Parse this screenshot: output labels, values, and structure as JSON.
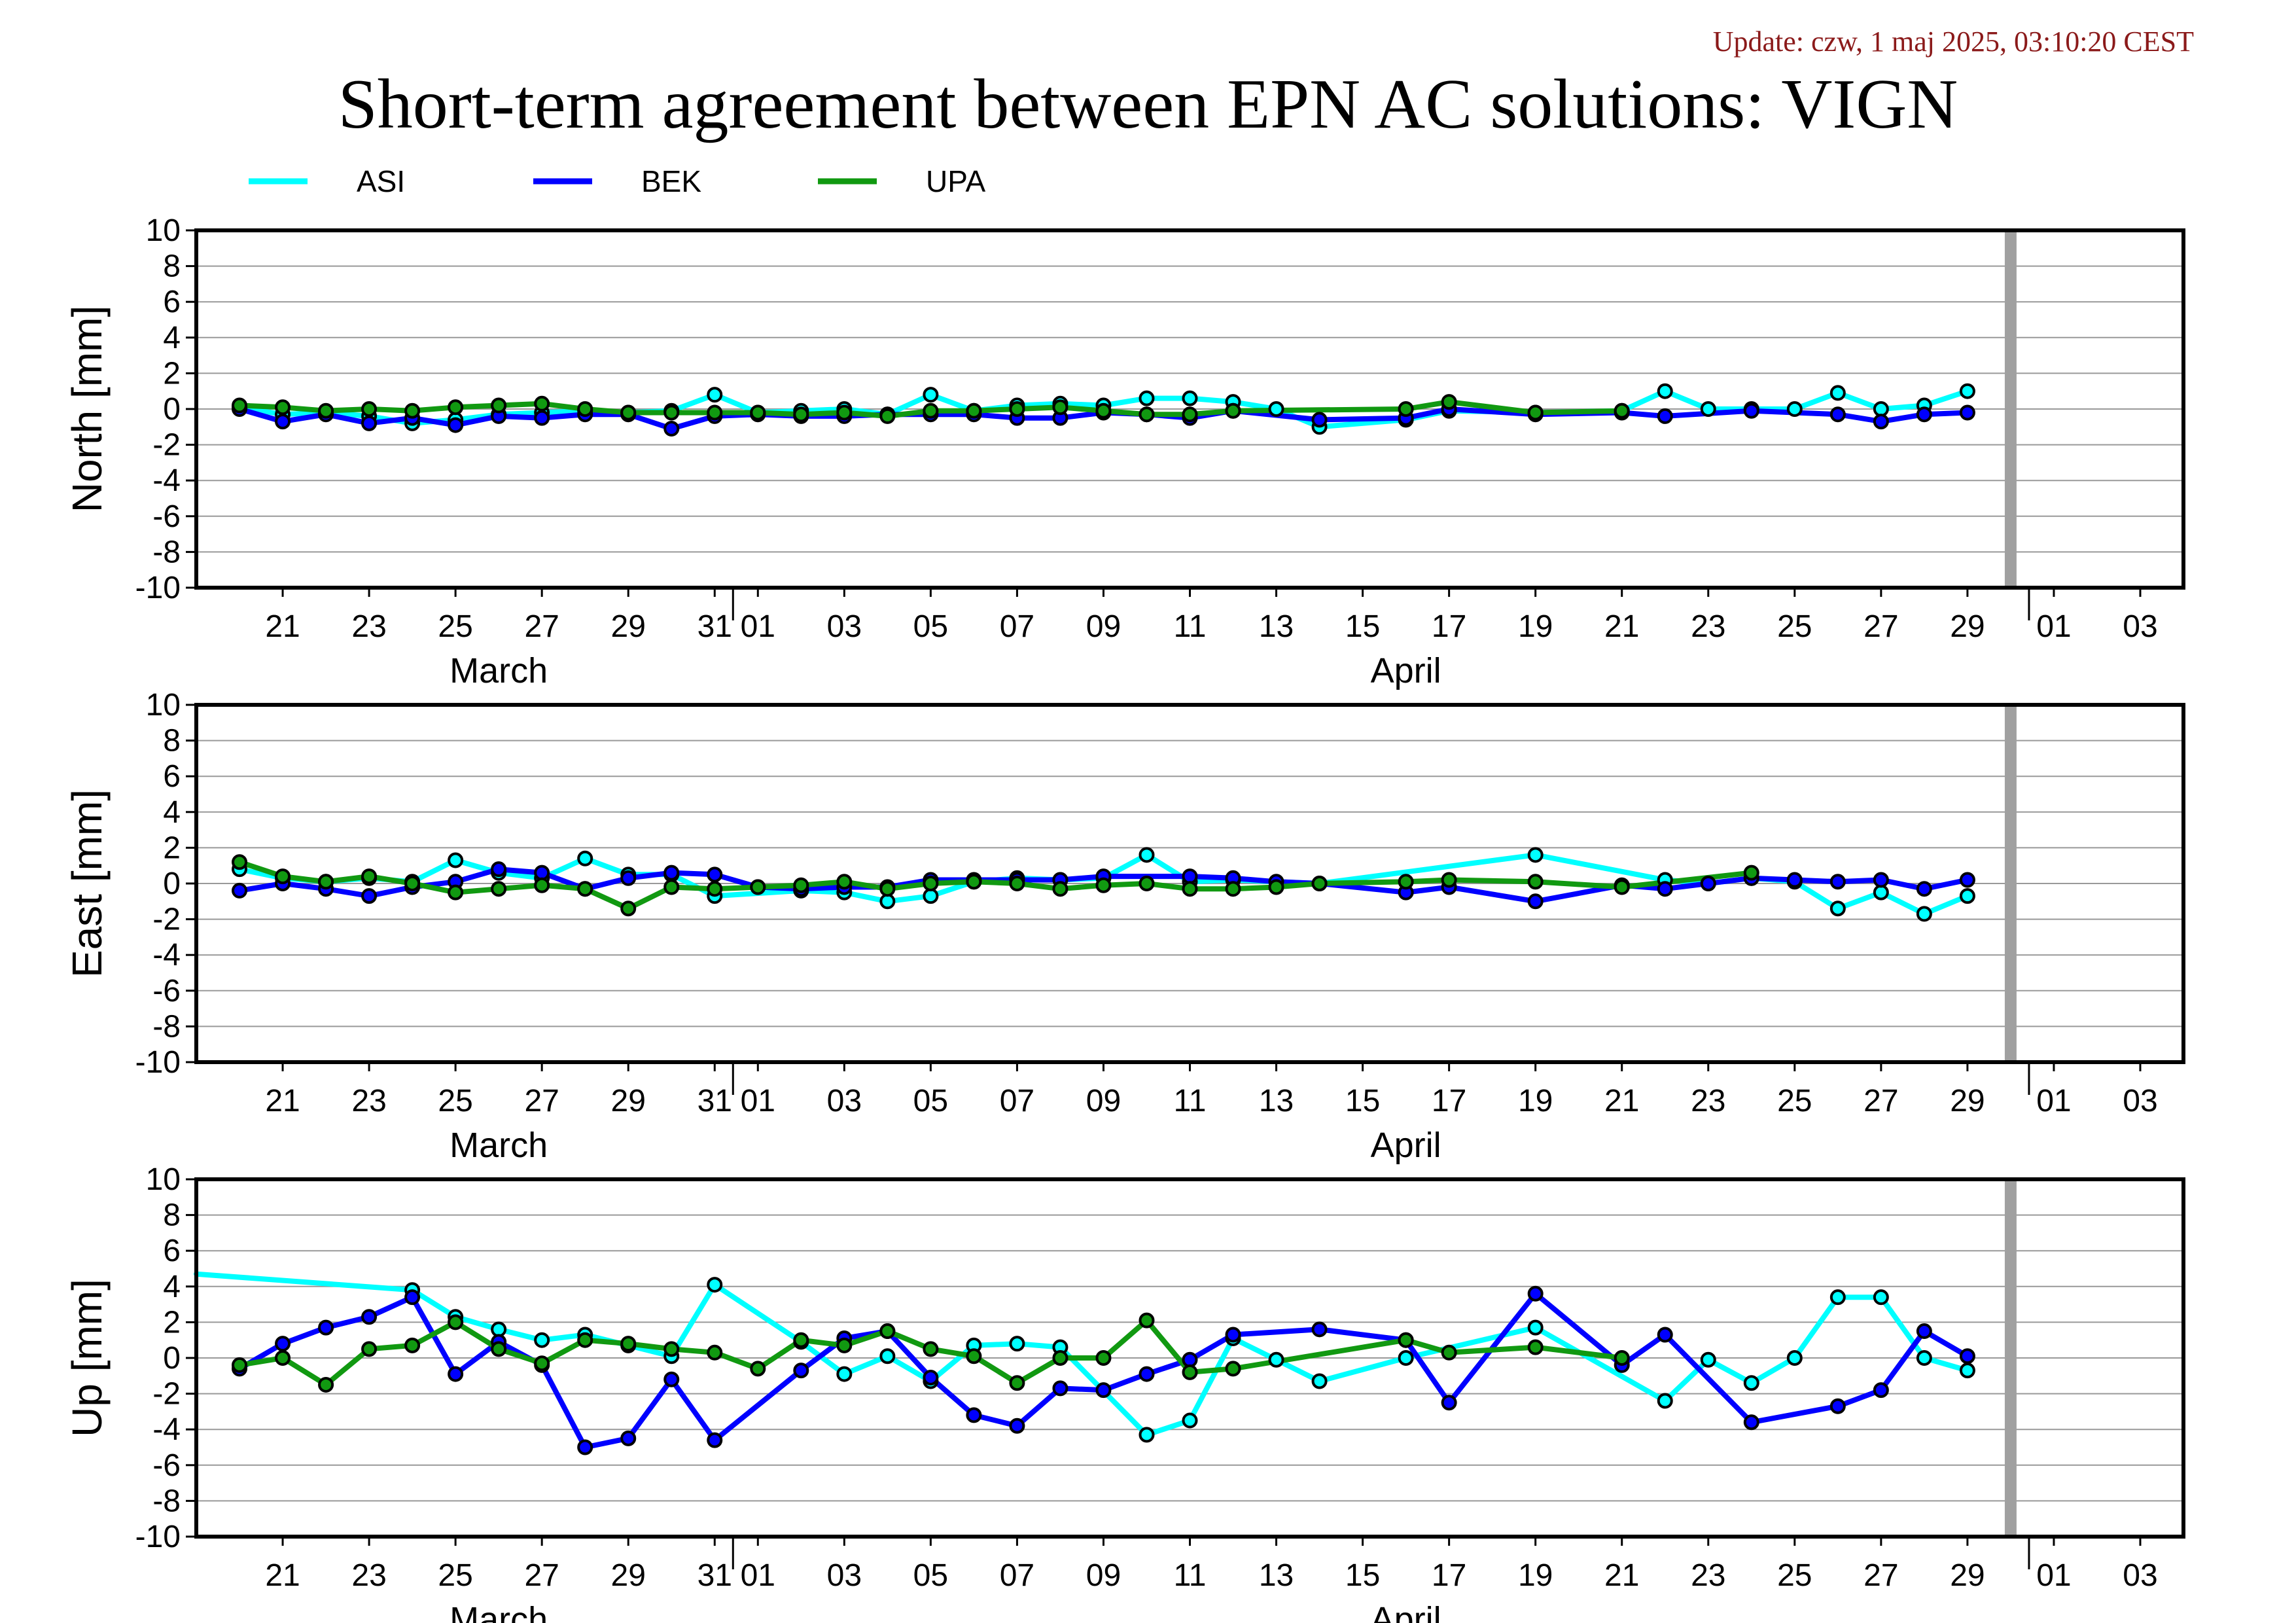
{
  "header": {
    "update": "Update: czw, 1 maj 2025, 03:10:20 CEST",
    "title": "Short-term agreement between EPN AC solutions: VIGN"
  },
  "colors": {
    "ASI": "#00ffff",
    "BEK": "#0000ff",
    "UPA": "#119911",
    "gap_bar": "#a0a0a0",
    "grid": "#999999"
  },
  "chart_data": {
    "type": "line",
    "legend": {
      "placement": "top-left",
      "entries": [
        "ASI",
        "BEK",
        "UPA"
      ]
    },
    "x_range": [
      "2025-03-19",
      "2025-05-04"
    ],
    "x_ticks": [
      "21",
      "23",
      "25",
      "27",
      "29",
      "31",
      "01",
      "03",
      "05",
      "07",
      "09",
      "11",
      "13",
      "15",
      "17",
      "19",
      "21",
      "23",
      "25",
      "27",
      "29",
      "01",
      "03"
    ],
    "x_tick_dates": [
      "2025-03-21",
      "2025-03-23",
      "2025-03-25",
      "2025-03-27",
      "2025-03-29",
      "2025-03-31",
      "2025-04-01",
      "2025-04-03",
      "2025-04-05",
      "2025-04-07",
      "2025-04-09",
      "2025-04-11",
      "2025-04-13",
      "2025-04-15",
      "2025-04-17",
      "2025-04-19",
      "2025-04-21",
      "2025-04-23",
      "2025-04-25",
      "2025-04-27",
      "2025-04-29",
      "2025-05-01",
      "2025-05-03"
    ],
    "month_labels": [
      {
        "date": "2025-03-26",
        "label": "March"
      },
      {
        "date": "2025-04-16",
        "label": "April"
      }
    ],
    "gap_marker_date": "2025-04-30",
    "panels": [
      {
        "name": "north",
        "ylabel": "North [mm]",
        "ylim": [
          -10,
          10
        ],
        "y_ticks": [
          10,
          8,
          6,
          4,
          2,
          0,
          -2,
          -4,
          -6,
          -8,
          -10
        ],
        "grid": true,
        "series": [
          {
            "name": "ASI",
            "dates": [
              "2025-03-20",
              "2025-03-21",
              "2025-03-22",
              "2025-03-23",
              "2025-03-24",
              "2025-03-25",
              "2025-03-26",
              "2025-03-27",
              "2025-03-28",
              "2025-03-29",
              "2025-03-30",
              "2025-03-31",
              "2025-04-01",
              "2025-04-02",
              "2025-04-03",
              "2025-04-04",
              "2025-04-05",
              "2025-04-06",
              "2025-04-07",
              "2025-04-08",
              "2025-04-09",
              "2025-04-10",
              "2025-04-11",
              "2025-04-12",
              "2025-04-13",
              "2025-04-14",
              "2025-04-16",
              "2025-04-17",
              "2025-04-19",
              "2025-04-21",
              "2025-04-22",
              "2025-04-23",
              "2025-04-24",
              "2025-04-25",
              "2025-04-26",
              "2025-04-27",
              "2025-04-28",
              "2025-04-29"
            ],
            "values": [
              0.1,
              -0.3,
              -0.2,
              -0.4,
              -0.8,
              -0.6,
              -0.3,
              -0.2,
              -0.1,
              -0.2,
              -0.1,
              0.8,
              -0.2,
              -0.1,
              0.0,
              -0.3,
              0.8,
              -0.1,
              0.2,
              0.3,
              0.2,
              0.6,
              0.6,
              0.4,
              0.0,
              -1.0,
              -0.6,
              -0.1,
              -0.2,
              -0.1,
              1.0,
              0.0,
              0.0,
              0.0,
              0.9,
              0.0,
              0.2,
              1.0
            ]
          },
          {
            "name": "BEK",
            "dates": [
              "2025-03-20",
              "2025-03-21",
              "2025-03-22",
              "2025-03-23",
              "2025-03-24",
              "2025-03-25",
              "2025-03-26",
              "2025-03-27",
              "2025-03-28",
              "2025-03-29",
              "2025-03-30",
              "2025-03-31",
              "2025-04-01",
              "2025-04-02",
              "2025-04-03",
              "2025-04-04",
              "2025-04-05",
              "2025-04-06",
              "2025-04-07",
              "2025-04-08",
              "2025-04-09",
              "2025-04-10",
              "2025-04-11",
              "2025-04-12",
              "2025-04-14",
              "2025-04-16",
              "2025-04-17",
              "2025-04-19",
              "2025-04-21",
              "2025-04-22",
              "2025-04-24",
              "2025-04-26",
              "2025-04-27",
              "2025-04-28",
              "2025-04-29"
            ],
            "values": [
              0.0,
              -0.7,
              -0.3,
              -0.8,
              -0.5,
              -0.9,
              -0.4,
              -0.5,
              -0.3,
              -0.3,
              -1.1,
              -0.4,
              -0.3,
              -0.4,
              -0.4,
              -0.3,
              -0.3,
              -0.3,
              -0.5,
              -0.5,
              -0.2,
              -0.3,
              -0.5,
              -0.1,
              -0.6,
              -0.5,
              0.0,
              -0.3,
              -0.2,
              -0.4,
              -0.1,
              -0.3,
              -0.7,
              -0.3,
              -0.2
            ]
          },
          {
            "name": "UPA",
            "dates": [
              "2025-03-20",
              "2025-03-21",
              "2025-03-22",
              "2025-03-23",
              "2025-03-24",
              "2025-03-25",
              "2025-03-26",
              "2025-03-27",
              "2025-03-28",
              "2025-03-29",
              "2025-03-30",
              "2025-03-31",
              "2025-04-01",
              "2025-04-02",
              "2025-04-03",
              "2025-04-04",
              "2025-04-05",
              "2025-04-06",
              "2025-04-07",
              "2025-04-08",
              "2025-04-09",
              "2025-04-10",
              "2025-04-11",
              "2025-04-12",
              "2025-04-16",
              "2025-04-17",
              "2025-04-19",
              "2025-04-21"
            ],
            "values": [
              0.2,
              0.1,
              -0.1,
              0.0,
              -0.1,
              0.1,
              0.2,
              0.3,
              0.0,
              -0.2,
              -0.2,
              -0.2,
              -0.2,
              -0.3,
              -0.2,
              -0.4,
              -0.1,
              -0.1,
              0.0,
              0.1,
              -0.1,
              -0.3,
              -0.3,
              -0.1,
              0.0,
              0.4,
              -0.2,
              -0.1
            ]
          }
        ]
      },
      {
        "name": "east",
        "ylabel": "East [mm]",
        "ylim": [
          -10,
          10
        ],
        "y_ticks": [
          10,
          8,
          6,
          4,
          2,
          0,
          -2,
          -4,
          -6,
          -8,
          -10
        ],
        "grid": true,
        "series": [
          {
            "name": "ASI",
            "dates": [
              "2025-03-20",
              "2025-03-21",
              "2025-03-22",
              "2025-03-23",
              "2025-03-24",
              "2025-03-25",
              "2025-03-26",
              "2025-03-27",
              "2025-03-28",
              "2025-03-29",
              "2025-03-30",
              "2025-03-31",
              "2025-04-02",
              "2025-04-03",
              "2025-04-04",
              "2025-04-05",
              "2025-04-06",
              "2025-04-07",
              "2025-04-08",
              "2025-04-09",
              "2025-04-10",
              "2025-04-11",
              "2025-04-12",
              "2025-04-14",
              "2025-04-19",
              "2025-04-22",
              "2025-04-23",
              "2025-04-24",
              "2025-04-25",
              "2025-04-26",
              "2025-04-27",
              "2025-04-28",
              "2025-04-29"
            ],
            "values": [
              0.8,
              0.3,
              0.1,
              0.3,
              0.1,
              1.3,
              0.6,
              0.3,
              1.4,
              0.5,
              0.5,
              -0.7,
              -0.4,
              -0.5,
              -1.0,
              -0.7,
              0.1,
              0.3,
              0.2,
              0.3,
              1.6,
              0.1,
              0.2,
              0.0,
              1.6,
              0.2,
              0.0,
              0.3,
              0.1,
              -1.4,
              -0.5,
              -1.7,
              -0.7
            ]
          },
          {
            "name": "BEK",
            "dates": [
              "2025-03-20",
              "2025-03-21",
              "2025-03-22",
              "2025-03-23",
              "2025-03-24",
              "2025-03-25",
              "2025-03-26",
              "2025-03-27",
              "2025-03-28",
              "2025-03-29",
              "2025-03-30",
              "2025-03-31",
              "2025-04-01",
              "2025-04-02",
              "2025-04-03",
              "2025-04-04",
              "2025-04-05",
              "2025-04-06",
              "2025-04-07",
              "2025-04-08",
              "2025-04-09",
              "2025-04-11",
              "2025-04-12",
              "2025-04-13",
              "2025-04-14",
              "2025-04-16",
              "2025-04-17",
              "2025-04-19",
              "2025-04-21",
              "2025-04-22",
              "2025-04-23",
              "2025-04-24",
              "2025-04-25",
              "2025-04-26",
              "2025-04-27",
              "2025-04-28",
              "2025-04-29"
            ],
            "values": [
              -0.4,
              0.0,
              -0.3,
              -0.7,
              -0.2,
              0.1,
              0.8,
              0.6,
              -0.3,
              0.3,
              0.6,
              0.5,
              -0.2,
              -0.3,
              -0.2,
              -0.2,
              0.2,
              0.2,
              0.2,
              0.2,
              0.4,
              0.4,
              0.3,
              0.1,
              0.0,
              -0.5,
              -0.2,
              -1.0,
              -0.1,
              -0.3,
              0.0,
              0.3,
              0.2,
              0.1,
              0.2,
              -0.3,
              0.2
            ]
          },
          {
            "name": "UPA",
            "dates": [
              "2025-03-20",
              "2025-03-21",
              "2025-03-22",
              "2025-03-23",
              "2025-03-24",
              "2025-03-25",
              "2025-03-26",
              "2025-03-27",
              "2025-03-28",
              "2025-03-29",
              "2025-03-30",
              "2025-03-31",
              "2025-04-01",
              "2025-04-02",
              "2025-04-03",
              "2025-04-04",
              "2025-04-05",
              "2025-04-06",
              "2025-04-07",
              "2025-04-08",
              "2025-04-09",
              "2025-04-10",
              "2025-04-11",
              "2025-04-12",
              "2025-04-13",
              "2025-04-14",
              "2025-04-16",
              "2025-04-17",
              "2025-04-19",
              "2025-04-21",
              "2025-04-24"
            ],
            "values": [
              1.2,
              0.4,
              0.1,
              0.4,
              0.0,
              -0.5,
              -0.3,
              -0.1,
              -0.3,
              -1.4,
              -0.2,
              -0.3,
              -0.2,
              -0.1,
              0.1,
              -0.3,
              0.0,
              0.1,
              0.0,
              -0.3,
              -0.1,
              0.0,
              -0.3,
              -0.3,
              -0.2,
              0.0,
              0.1,
              0.2,
              0.1,
              -0.2,
              0.6
            ]
          }
        ]
      },
      {
        "name": "up",
        "ylabel": "Up [mm]",
        "ylim": [
          -10,
          10
        ],
        "y_ticks": [
          10,
          8,
          6,
          4,
          2,
          0,
          -2,
          -4,
          -6,
          -8,
          -10
        ],
        "grid": true,
        "series": [
          {
            "name": "ASI",
            "dates": [
              "2025-03-19",
              "2025-03-24",
              "2025-03-25",
              "2025-03-26",
              "2025-03-27",
              "2025-03-28",
              "2025-03-29",
              "2025-03-30",
              "2025-03-31",
              "2025-04-02",
              "2025-04-03",
              "2025-04-04",
              "2025-04-05",
              "2025-04-06",
              "2025-04-07",
              "2025-04-08",
              "2025-04-10",
              "2025-04-11",
              "2025-04-12",
              "2025-04-13",
              "2025-04-14",
              "2025-04-16",
              "2025-04-19",
              "2025-04-22",
              "2025-04-23",
              "2025-04-24",
              "2025-04-25",
              "2025-04-26",
              "2025-04-27",
              "2025-04-28",
              "2025-04-29"
            ],
            "values": [
              4.7,
              3.8,
              2.3,
              1.6,
              1.0,
              1.3,
              0.7,
              0.1,
              4.1,
              0.9,
              -0.9,
              0.1,
              -1.3,
              0.7,
              0.8,
              0.6,
              -4.3,
              -3.5,
              1.1,
              -0.1,
              -1.3,
              0.0,
              1.7,
              -2.4,
              -0.1,
              -1.4,
              0.0,
              3.4,
              3.4,
              0.0,
              -0.7
            ]
          },
          {
            "name": "BEK",
            "dates": [
              "2025-03-20",
              "2025-03-21",
              "2025-03-22",
              "2025-03-23",
              "2025-03-24",
              "2025-03-25",
              "2025-03-26",
              "2025-03-27",
              "2025-03-28",
              "2025-03-29",
              "2025-03-30",
              "2025-03-31",
              "2025-04-02",
              "2025-04-03",
              "2025-04-04",
              "2025-04-05",
              "2025-04-06",
              "2025-04-07",
              "2025-04-08",
              "2025-04-09",
              "2025-04-10",
              "2025-04-11",
              "2025-04-12",
              "2025-04-14",
              "2025-04-16",
              "2025-04-17",
              "2025-04-19",
              "2025-04-21",
              "2025-04-22",
              "2025-04-24",
              "2025-04-26",
              "2025-04-27",
              "2025-04-28",
              "2025-04-29"
            ],
            "values": [
              -0.6,
              0.8,
              1.7,
              2.3,
              3.4,
              -0.9,
              0.9,
              -0.4,
              -5.0,
              -4.5,
              -1.2,
              -4.6,
              -0.7,
              1.1,
              1.5,
              -1.1,
              -3.2,
              -3.8,
              -1.7,
              -1.8,
              -0.9,
              -0.1,
              1.3,
              1.6,
              1.0,
              -2.5,
              3.6,
              -0.4,
              1.3,
              -3.6,
              -2.7,
              -1.8,
              1.5,
              0.1
            ]
          },
          {
            "name": "UPA",
            "dates": [
              "2025-03-20",
              "2025-03-21",
              "2025-03-22",
              "2025-03-23",
              "2025-03-24",
              "2025-03-25",
              "2025-03-26",
              "2025-03-27",
              "2025-03-28",
              "2025-03-29",
              "2025-03-30",
              "2025-03-31",
              "2025-04-01",
              "2025-04-02",
              "2025-04-03",
              "2025-04-04",
              "2025-04-05",
              "2025-04-06",
              "2025-04-07",
              "2025-04-08",
              "2025-04-09",
              "2025-04-10",
              "2025-04-11",
              "2025-04-12",
              "2025-04-16",
              "2025-04-17",
              "2025-04-19",
              "2025-04-21"
            ],
            "values": [
              -0.4,
              0.0,
              -1.5,
              0.5,
              0.7,
              2.0,
              0.5,
              -0.3,
              1.0,
              0.8,
              0.5,
              0.3,
              -0.6,
              1.0,
              0.7,
              1.5,
              0.5,
              0.1,
              -1.4,
              0.0,
              0.0,
              2.1,
              -0.8,
              -0.6,
              1.0,
              0.3,
              0.6,
              0.0
            ]
          }
        ]
      }
    ]
  }
}
